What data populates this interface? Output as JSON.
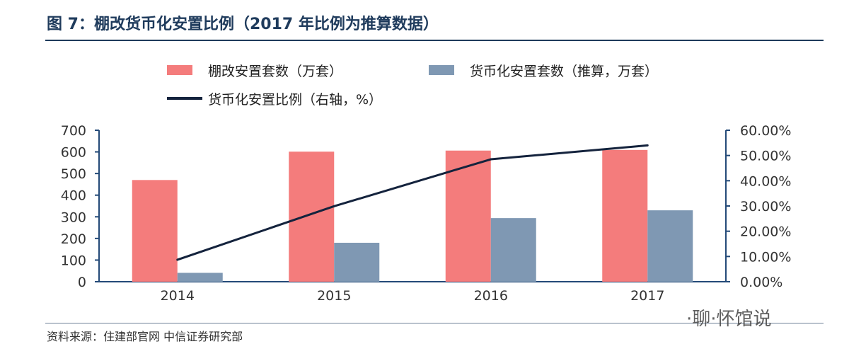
{
  "title": "图 7：棚改货币化安置比例（2017 年比例为推算数据）",
  "source": "资料来源：住建部官网 中信证券研究部",
  "watermark": "·聊·怀馆说",
  "colors": {
    "series1": "#f47c7c",
    "series2": "#7f98b3",
    "line": "#14233d",
    "title": "#1f3b5c",
    "axis": "#244a78"
  },
  "chart_data": {
    "type": "bar",
    "categories": [
      "2014",
      "2015",
      "2016",
      "2017"
    ],
    "series": [
      {
        "name": "棚改安置套数（万套）",
        "type": "bar",
        "axis": "left",
        "values": [
          470,
          601,
          606,
          609
        ]
      },
      {
        "name": "货币化安置套数（推算，万套）",
        "type": "bar",
        "axis": "left",
        "values": [
          41,
          180,
          294,
          330
        ]
      },
      {
        "name": "货币化安置比例（右轴，%）",
        "type": "line",
        "axis": "right",
        "values": [
          8.7,
          29.9,
          48.5,
          54.0
        ]
      }
    ],
    "y_left": {
      "min": 0,
      "max": 700,
      "ticks": [
        "0",
        "100",
        "200",
        "300",
        "400",
        "500",
        "600",
        "700"
      ]
    },
    "y_right": {
      "min": 0,
      "max": 60,
      "ticks": [
        "0.00%",
        "10.00%",
        "20.00%",
        "30.00%",
        "40.00%",
        "50.00%",
        "60.00%"
      ]
    },
    "legend_position": "top",
    "grid": false
  }
}
